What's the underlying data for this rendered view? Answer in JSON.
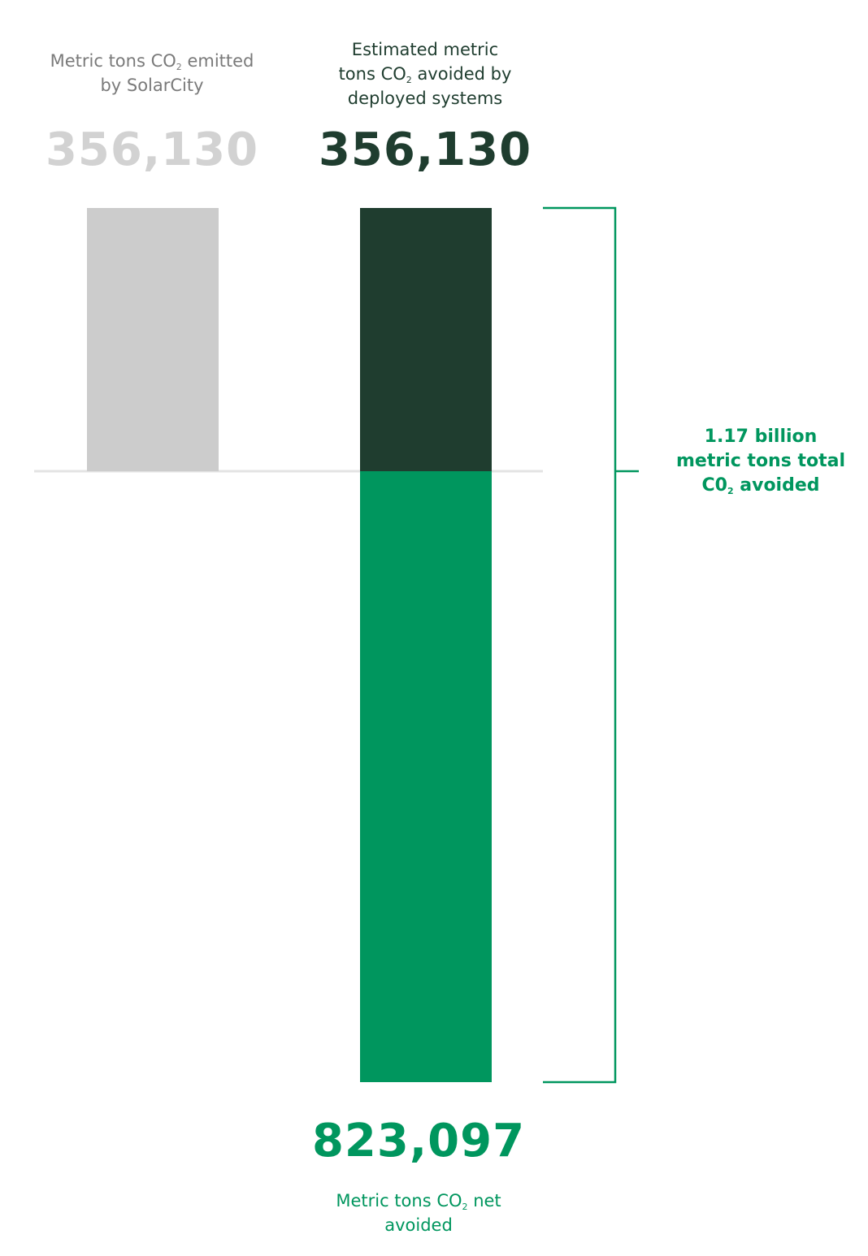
{
  "colors": {
    "emitted": "#cccccc",
    "avoided_dark": "#1f3d2f",
    "net_green": "#00965e",
    "baseline": "#e3e3e3",
    "emitted_text": "#7a7a7a",
    "emitted_value_text": "#d2d2d2"
  },
  "captions": {
    "emitted": {
      "before_sub": "Metric tons CO",
      "sub": "2",
      "after_sub": " emitted",
      "line2": "by SolarCity"
    },
    "avoided": {
      "line1": "Estimated metric",
      "before_sub": "tons CO",
      "sub": "2",
      "after_sub": " avoided by",
      "line3": "deployed systems"
    },
    "net": {
      "before_sub": "Metric tons CO",
      "sub": "2",
      "after_sub": " net",
      "line2": "avoided"
    },
    "total": {
      "line1": "1.17 billion",
      "line2": "metric tons total",
      "before_sub": "C0",
      "sub": "2",
      "after_sub": " avoided"
    }
  },
  "chart_data": {
    "type": "bar",
    "categories": [
      "Metric tons CO2 emitted by SolarCity",
      "Estimated metric tons CO2 avoided by deployed systems"
    ],
    "series": [
      {
        "name": "Metric tons CO2 emitted by SolarCity",
        "values": [
          356130,
          0
        ]
      },
      {
        "name": "Estimated metric tons CO2 avoided by deployed systems",
        "values": [
          0,
          356130
        ]
      },
      {
        "name": "Metric tons CO2 net avoided",
        "values": [
          0,
          -823097
        ]
      }
    ],
    "labels": {
      "emitted": "356,130",
      "avoided": "356,130",
      "net": "823,097"
    },
    "bracket_total_label": "1.17 billion metric tons total C02 avoided",
    "ylim": [
      -823097,
      356130
    ],
    "grid": false
  }
}
